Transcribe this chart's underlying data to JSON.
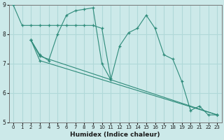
{
  "xlabel": "Humidex (Indice chaleur)",
  "xlim": [
    -0.5,
    23.5
  ],
  "ylim": [
    5,
    9
  ],
  "yticks": [
    5,
    6,
    7,
    8,
    9
  ],
  "xticks": [
    0,
    1,
    2,
    3,
    4,
    5,
    6,
    7,
    8,
    9,
    10,
    11,
    12,
    13,
    14,
    15,
    16,
    17,
    18,
    19,
    20,
    21,
    22,
    23
  ],
  "bg_color": "#cce9e9",
  "line_color": "#2e8b7a",
  "grid_color": "#b0d8d8",
  "lines": [
    {
      "x": [
        0,
        1,
        2,
        3,
        4,
        5,
        6,
        7,
        8,
        9,
        10,
        11
      ],
      "y": [
        9.0,
        8.3,
        8.3,
        8.3,
        8.3,
        8.3,
        8.3,
        8.3,
        8.3,
        8.3,
        8.2,
        6.5
      ]
    },
    {
      "x": [
        2,
        3,
        4,
        5,
        6,
        7,
        8,
        9,
        10,
        11,
        12,
        13,
        14,
        15,
        16,
        17,
        18,
        19,
        20,
        21,
        22,
        23
      ],
      "y": [
        7.8,
        7.3,
        7.1,
        8.0,
        8.65,
        8.8,
        8.85,
        8.9,
        7.0,
        6.45,
        7.6,
        8.05,
        8.2,
        8.65,
        8.2,
        7.3,
        7.15,
        6.4,
        5.4,
        5.55,
        5.25,
        5.25
      ]
    },
    {
      "x": [
        2,
        3,
        23
      ],
      "y": [
        7.8,
        7.25,
        5.25
      ]
    },
    {
      "x": [
        2,
        3,
        23
      ],
      "y": [
        7.8,
        7.1,
        5.25
      ]
    }
  ]
}
